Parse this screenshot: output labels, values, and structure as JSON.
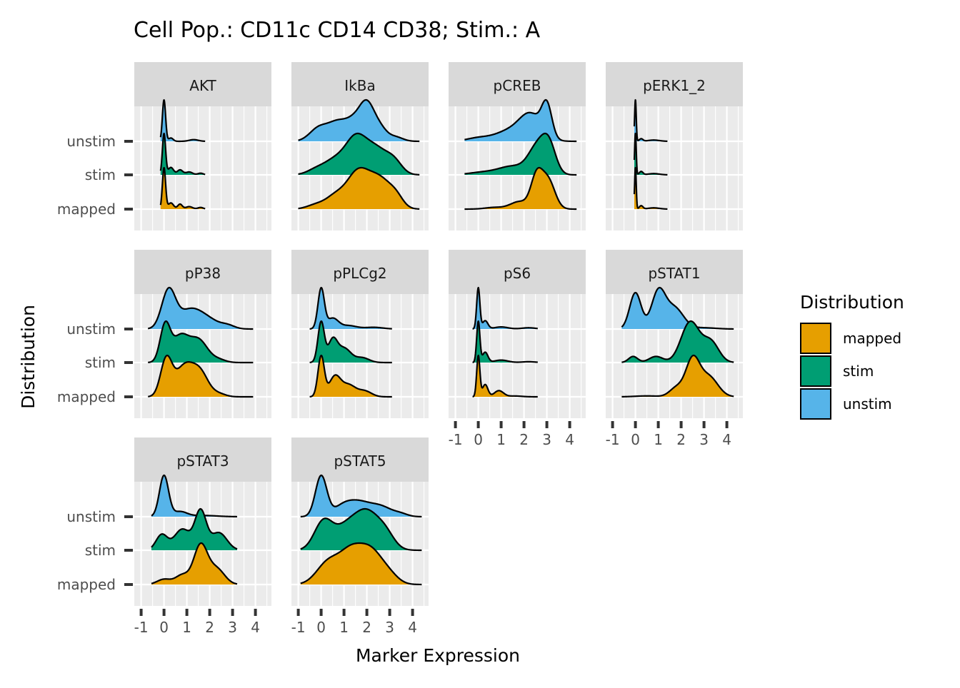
{
  "chart_data": {
    "type": "ridgeline",
    "title": "Cell Pop.: CD11c CD14 CD38; Stim.: A",
    "xlabel": "Marker Expression",
    "ylabel": "Distribution",
    "x_ticks": [
      "-1",
      "0",
      "1",
      "2",
      "3",
      "4"
    ],
    "x_tick_values": [
      -1,
      0,
      1,
      2,
      3,
      4
    ],
    "y_categories": [
      "unstim",
      "stim",
      "mapped"
    ],
    "legend": {
      "title": "Distribution",
      "position": "right",
      "entries": [
        {
          "label": "mapped",
          "color": "#E69F00"
        },
        {
          "label": "stim",
          "color": "#009E73"
        },
        {
          "label": "unstim",
          "color": "#56B4E9"
        }
      ]
    },
    "facets": [
      {
        "name": "AKT",
        "series": {
          "unstim": {
            "range": [
              -0.15,
              1.8
            ],
            "peaks": [
              [
                0.0,
                0.07,
                1.0
              ],
              [
                0.3,
                0.1,
                0.08
              ],
              [
                1.3,
                0.2,
                0.04
              ]
            ]
          },
          "stim": {
            "range": [
              -0.15,
              1.8
            ],
            "peaks": [
              [
                0.0,
                0.07,
                1.0
              ],
              [
                0.3,
                0.12,
                0.18
              ],
              [
                0.7,
                0.12,
                0.12
              ],
              [
                1.1,
                0.15,
                0.07
              ],
              [
                1.6,
                0.12,
                0.04
              ]
            ]
          },
          "mapped": {
            "range": [
              -0.15,
              1.8
            ],
            "peaks": [
              [
                0.0,
                0.07,
                1.0
              ],
              [
                0.3,
                0.12,
                0.15
              ],
              [
                0.7,
                0.1,
                0.12
              ],
              [
                1.1,
                0.15,
                0.06
              ],
              [
                1.6,
                0.12,
                0.04
              ]
            ]
          }
        }
      },
      {
        "name": "IkBa",
        "series": {
          "unstim": {
            "range": [
              -1.0,
              4.3
            ],
            "peaks": [
              [
                -0.1,
                0.4,
                0.35
              ],
              [
                0.7,
                0.4,
                0.45
              ],
              [
                1.5,
                0.4,
                0.55
              ],
              [
                2.0,
                0.3,
                0.7
              ],
              [
                2.5,
                0.35,
                0.4
              ],
              [
                3.3,
                0.3,
                0.1
              ]
            ]
          },
          "stim": {
            "range": [
              -1.0,
              4.3
            ],
            "peaks": [
              [
                -0.2,
                0.4,
                0.12
              ],
              [
                0.6,
                0.45,
                0.3
              ],
              [
                1.5,
                0.45,
                0.75
              ],
              [
                2.4,
                0.5,
                0.55
              ],
              [
                3.2,
                0.35,
                0.25
              ]
            ]
          },
          "mapped": {
            "range": [
              -1.0,
              4.3
            ],
            "peaks": [
              [
                -0.2,
                0.4,
                0.1
              ],
              [
                0.6,
                0.4,
                0.25
              ],
              [
                1.6,
                0.5,
                0.8
              ],
              [
                2.6,
                0.5,
                0.62
              ],
              [
                3.3,
                0.3,
                0.18
              ]
            ]
          }
        }
      },
      {
        "name": "pCREB",
        "series": {
          "unstim": {
            "range": [
              -0.6,
              4.3
            ],
            "peaks": [
              [
                0.0,
                0.5,
                0.07
              ],
              [
                1.3,
                0.6,
                0.2
              ],
              [
                2.3,
                0.5,
                0.55
              ],
              [
                3.0,
                0.22,
                0.65
              ]
            ]
          },
          "stim": {
            "range": [
              -0.6,
              4.3
            ],
            "peaks": [
              [
                0.2,
                0.6,
                0.06
              ],
              [
                1.5,
                0.6,
                0.2
              ],
              [
                2.6,
                0.4,
                0.65
              ],
              [
                3.1,
                0.3,
                0.6
              ]
            ]
          },
          "mapped": {
            "range": [
              -0.6,
              4.3
            ],
            "peaks": [
              [
                0.7,
                0.4,
                0.04
              ],
              [
                1.8,
                0.4,
                0.18
              ],
              [
                2.55,
                0.25,
                0.75
              ],
              [
                3.05,
                0.3,
                0.7
              ]
            ]
          }
        }
      },
      {
        "name": "pERK1_2",
        "series": {
          "unstim": {
            "range": [
              -0.05,
              1.4
            ],
            "peaks": [
              [
                0.0,
                0.035,
                1.0
              ],
              [
                0.25,
                0.08,
                0.06
              ],
              [
                0.8,
                0.25,
                0.03
              ]
            ]
          },
          "stim": {
            "range": [
              -0.05,
              1.4
            ],
            "peaks": [
              [
                0.0,
                0.035,
                1.0
              ],
              [
                0.25,
                0.08,
                0.08
              ],
              [
                0.8,
                0.25,
                0.03
              ]
            ]
          },
          "mapped": {
            "range": [
              -0.05,
              1.4
            ],
            "peaks": [
              [
                0.0,
                0.035,
                1.0
              ],
              [
                0.25,
                0.08,
                0.08
              ],
              [
                0.8,
                0.25,
                0.03
              ]
            ]
          }
        }
      },
      {
        "name": "pP38",
        "series": {
          "unstim": {
            "range": [
              -0.7,
              3.9
            ],
            "peaks": [
              [
                0.2,
                0.3,
                0.85
              ],
              [
                1.1,
                0.5,
                0.4
              ],
              [
                1.9,
                0.5,
                0.2
              ],
              [
                2.8,
                0.3,
                0.07
              ]
            ]
          },
          "stim": {
            "range": [
              -0.7,
              3.9
            ],
            "peaks": [
              [
                0.05,
                0.22,
                0.8
              ],
              [
                0.7,
                0.35,
                0.55
              ],
              [
                1.5,
                0.4,
                0.5
              ],
              [
                2.4,
                0.3,
                0.06
              ]
            ]
          },
          "mapped": {
            "range": [
              -0.7,
              3.9
            ],
            "peaks": [
              [
                0.1,
                0.25,
                0.75
              ],
              [
                0.9,
                0.4,
                0.62
              ],
              [
                1.6,
                0.35,
                0.45
              ],
              [
                2.4,
                0.3,
                0.06
              ]
            ]
          }
        }
      },
      {
        "name": "pPLCg2",
        "series": {
          "unstim": {
            "range": [
              -0.5,
              3.1
            ],
            "peaks": [
              [
                0.0,
                0.14,
                0.95
              ],
              [
                0.5,
                0.25,
                0.25
              ],
              [
                1.2,
                0.35,
                0.08
              ],
              [
                2.3,
                0.4,
                0.04
              ]
            ]
          },
          "stim": {
            "range": [
              -0.5,
              3.1
            ],
            "peaks": [
              [
                0.0,
                0.14,
                0.85
              ],
              [
                0.5,
                0.2,
                0.45
              ],
              [
                1.0,
                0.3,
                0.3
              ],
              [
                1.8,
                0.3,
                0.1
              ]
            ]
          },
          "mapped": {
            "range": [
              -0.5,
              3.1
            ],
            "peaks": [
              [
                0.0,
                0.14,
                0.7
              ],
              [
                0.6,
                0.25,
                0.35
              ],
              [
                1.2,
                0.3,
                0.2
              ],
              [
                1.9,
                0.3,
                0.1
              ]
            ]
          }
        }
      },
      {
        "name": "pS6",
        "series": {
          "unstim": {
            "range": [
              -0.25,
              2.6
            ],
            "peaks": [
              [
                0.0,
                0.07,
                1.0
              ],
              [
                0.3,
                0.12,
                0.2
              ],
              [
                1.0,
                0.3,
                0.05
              ],
              [
                2.2,
                0.3,
                0.03
              ]
            ]
          },
          "stim": {
            "range": [
              -0.25,
              2.6
            ],
            "peaks": [
              [
                0.0,
                0.07,
                1.0
              ],
              [
                0.3,
                0.12,
                0.25
              ],
              [
                1.0,
                0.3,
                0.06
              ],
              [
                2.2,
                0.3,
                0.02
              ]
            ]
          },
          "mapped": {
            "range": [
              -0.25,
              2.6
            ],
            "peaks": [
              [
                0.0,
                0.07,
                1.0
              ],
              [
                0.3,
                0.12,
                0.3
              ],
              [
                0.9,
                0.2,
                0.15
              ],
              [
                1.6,
                0.3,
                0.02
              ]
            ]
          }
        }
      },
      {
        "name": "pSTAT1",
        "series": {
          "unstim": {
            "range": [
              -0.6,
              4.3
            ],
            "peaks": [
              [
                0.0,
                0.25,
                0.6
              ],
              [
                1.0,
                0.3,
                0.6
              ],
              [
                1.7,
                0.4,
                0.35
              ],
              [
                3.0,
                0.5,
                0.02
              ]
            ]
          },
          "stim": {
            "range": [
              -0.6,
              4.3
            ],
            "peaks": [
              [
                -0.1,
                0.2,
                0.12
              ],
              [
                0.9,
                0.3,
                0.12
              ],
              [
                2.4,
                0.4,
                0.8
              ],
              [
                3.3,
                0.35,
                0.4
              ]
            ]
          },
          "mapped": {
            "range": [
              -0.6,
              4.3
            ],
            "peaks": [
              [
                0.5,
                0.5,
                0.02
              ],
              [
                1.8,
                0.3,
                0.2
              ],
              [
                2.5,
                0.3,
                0.8
              ],
              [
                3.2,
                0.4,
                0.45
              ]
            ]
          }
        }
      },
      {
        "name": "pSTAT3",
        "series": {
          "unstim": {
            "range": [
              -0.55,
              3.2
            ],
            "peaks": [
              [
                0.0,
                0.2,
                1.0
              ],
              [
                0.7,
                0.3,
                0.12
              ],
              [
                1.7,
                0.6,
                0.03
              ]
            ]
          },
          "stim": {
            "range": [
              -0.55,
              3.2
            ],
            "peaks": [
              [
                -0.1,
                0.25,
                0.22
              ],
              [
                0.8,
                0.35,
                0.3
              ],
              [
                1.6,
                0.25,
                0.55
              ],
              [
                2.4,
                0.35,
                0.25
              ]
            ]
          },
          "mapped": {
            "range": [
              -0.55,
              3.2
            ],
            "peaks": [
              [
                0.0,
                0.3,
                0.1
              ],
              [
                0.8,
                0.3,
                0.18
              ],
              [
                1.6,
                0.3,
                0.75
              ],
              [
                2.3,
                0.35,
                0.3
              ]
            ]
          }
        }
      },
      {
        "name": "pSTAT5",
        "series": {
          "unstim": {
            "range": [
              -0.9,
              4.4
            ],
            "peaks": [
              [
                0.0,
                0.25,
                0.9
              ],
              [
                0.9,
                0.4,
                0.18
              ],
              [
                1.6,
                0.5,
                0.3
              ],
              [
                2.6,
                0.5,
                0.22
              ],
              [
                3.5,
                0.3,
                0.05
              ]
            ]
          },
          "stim": {
            "range": [
              -0.9,
              4.4
            ],
            "peaks": [
              [
                0.1,
                0.4,
                0.45
              ],
              [
                1.1,
                0.5,
                0.35
              ],
              [
                2.0,
                0.5,
                0.55
              ],
              [
                2.8,
                0.4,
                0.25
              ]
            ]
          },
          "mapped": {
            "range": [
              -0.9,
              4.4
            ],
            "peaks": [
              [
                0.3,
                0.5,
                0.42
              ],
              [
                1.3,
                0.5,
                0.6
              ],
              [
                2.2,
                0.5,
                0.6
              ],
              [
                3.0,
                0.4,
                0.15
              ]
            ]
          }
        }
      }
    ]
  }
}
